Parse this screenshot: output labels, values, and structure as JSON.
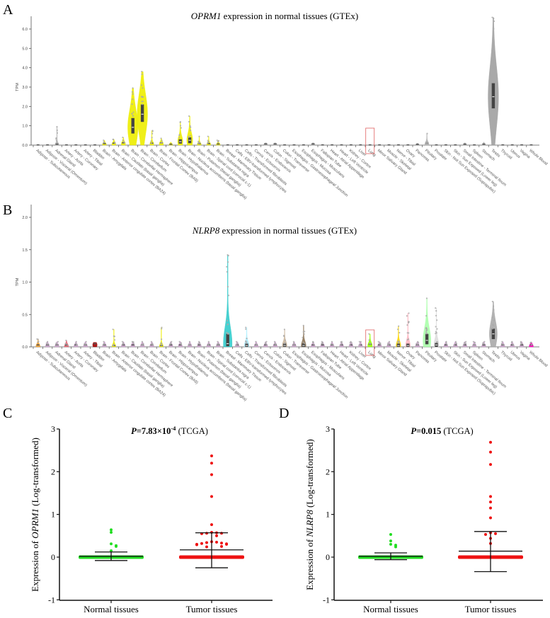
{
  "panel_labels": [
    "A",
    "B",
    "C",
    "D"
  ],
  "tissues": [
    "Adipose - Subcutaneous",
    "Adipose - Visceral (Omentum)",
    "Adrenal Gland",
    "Artery - Aorta",
    "Artery - Coronary",
    "Artery - Tibial",
    "Bladder",
    "Brain - Amygdala",
    "Brain - Anterior cingulate cortex (BA24)",
    "Brain - Caudate (basal ganglia)",
    "Brain - Cerebellar Hemisphere",
    "Brain - Cerebellum",
    "Brain - Cortex",
    "Brain - Frontal Cortex (BA9)",
    "Brain - Hippocampus",
    "Brain - Hypothalamus",
    "Brain - Nucleus accumbens (basal ganglia)",
    "Brain - Putamen (basal ganglia)",
    "Brain - Spinal cord (cervical c-1)",
    "Brain - Substantia nigra",
    "Breast - Mammary Tissue",
    "Cells - EBV-transformed lymphocytes",
    "Cells - Transformed fibroblasts",
    "Cervix - Ectocervix",
    "Cervix - Endocervix",
    "Colon - Sigmoid",
    "Colon - Transverse",
    "Esophagus - Gastroesophageal Junction",
    "Esophagus - Mucosa",
    "Esophagus - Muscularis",
    "Fallopian Tube",
    "Heart - Atrial Appendage",
    "Heart - Left Ventricle",
    "Kidney - Cortex",
    "Liver",
    "Lung",
    "Minor Salivary Gland",
    "Muscle - Skeletal",
    "Nerve - Tibial",
    "Ovary",
    "Pancreas",
    "Pituitary",
    "Prostate",
    "Skin - Not Sun Exposed (Suprapubic)",
    "Skin - Sun Exposed (Lower leg)",
    "Small Intestine - Terminal Ileum",
    "Spleen",
    "Stomach",
    "Testis",
    "Thyroid",
    "Uterus",
    "Vagina",
    "Whole Blood"
  ],
  "highlight_tissue": "Lung",
  "highlight_color": "#e06060",
  "chart_data": [
    {
      "type": "violin",
      "panel": "A",
      "title_gene": "OPRM1",
      "title_rest": " expression in normal tissues (GTEx)",
      "ylabel": "TPM",
      "ylim": [
        0,
        6.6
      ],
      "yticks": [
        "0.0",
        "1.0",
        "2.0",
        "3.0",
        "4.0",
        "5.0",
        "6.0"
      ],
      "default": {
        "median": 0.0,
        "q1": 0.0,
        "q3": 0.01,
        "max": 0.04,
        "color": "#b0b0b0"
      },
      "series": [
        {
          "tissue": "Adrenal Gland",
          "median": 0.02,
          "q1": 0.0,
          "q3": 0.05,
          "max": 0.95,
          "color": "#b0b0b0"
        },
        {
          "tissue": "Brain - Amygdala",
          "median": 0.04,
          "q1": 0.01,
          "q3": 0.08,
          "max": 0.25,
          "color": "#eeee00"
        },
        {
          "tissue": "Brain - Anterior cingulate cortex (BA24)",
          "median": 0.05,
          "q1": 0.02,
          "q3": 0.1,
          "max": 0.3,
          "color": "#eeee00"
        },
        {
          "tissue": "Brain - Caudate (basal ganglia)",
          "median": 0.07,
          "q1": 0.02,
          "q3": 0.12,
          "max": 0.4,
          "color": "#eeee00"
        },
        {
          "tissue": "Brain - Cerebellar Hemisphere",
          "median": 0.92,
          "q1": 0.6,
          "q3": 1.4,
          "max": 2.95,
          "color": "#eeee00"
        },
        {
          "tissue": "Brain - Cerebellum",
          "median": 1.6,
          "q1": 1.2,
          "q3": 2.1,
          "max": 3.8,
          "color": "#eeee00"
        },
        {
          "tissue": "Brain - Cortex",
          "median": 0.05,
          "q1": 0.02,
          "q3": 0.1,
          "max": 0.75,
          "color": "#eeee00"
        },
        {
          "tissue": "Brain - Frontal Cortex (BA9)",
          "median": 0.06,
          "q1": 0.02,
          "q3": 0.12,
          "max": 0.35,
          "color": "#eeee00"
        },
        {
          "tissue": "Brain - Hippocampus",
          "median": 0.02,
          "q1": 0.0,
          "q3": 0.05,
          "max": 0.15,
          "color": "#eeee00"
        },
        {
          "tissue": "Brain - Hypothalamus",
          "median": 0.18,
          "q1": 0.08,
          "q3": 0.3,
          "max": 1.2,
          "color": "#eeee00"
        },
        {
          "tissue": "Brain - Nucleus accumbens (basal ganglia)",
          "median": 0.25,
          "q1": 0.1,
          "q3": 0.4,
          "max": 1.5,
          "color": "#eeee00"
        },
        {
          "tissue": "Brain - Putamen (basal ganglia)",
          "median": 0.04,
          "q1": 0.01,
          "q3": 0.08,
          "max": 0.45,
          "color": "#eeee00"
        },
        {
          "tissue": "Brain - Spinal cord (cervical c-1)",
          "median": 0.04,
          "q1": 0.01,
          "q3": 0.08,
          "max": 0.45,
          "color": "#eeee00"
        },
        {
          "tissue": "Brain - Substantia nigra",
          "median": 0.03,
          "q1": 0.0,
          "q3": 0.06,
          "max": 0.25,
          "color": "#eeee00"
        },
        {
          "tissue": "Cervix - Endocervix",
          "median": 0.03,
          "q1": 0.0,
          "q3": 0.06,
          "max": 0.12,
          "color": "#b0b0b0"
        },
        {
          "tissue": "Colon - Sigmoid",
          "median": 0.03,
          "q1": 0.0,
          "q3": 0.06,
          "max": 0.12,
          "color": "#b0b0b0"
        },
        {
          "tissue": "Esophagus - Muscularis",
          "median": 0.03,
          "q1": 0.0,
          "q3": 0.06,
          "max": 0.12,
          "color": "#b0b0b0"
        },
        {
          "tissue": "Pancreas",
          "median": 0.02,
          "q1": 0.0,
          "q3": 0.04,
          "max": 0.1,
          "color": "#b0b0b0"
        },
        {
          "tissue": "Pituitary",
          "median": 0.05,
          "q1": 0.01,
          "q3": 0.1,
          "max": 0.6,
          "color": "#b0b0b0"
        },
        {
          "tissue": "Small Intestine - Terminal Ileum",
          "median": 0.02,
          "q1": 0.0,
          "q3": 0.05,
          "max": 0.12,
          "color": "#b0b0b0"
        },
        {
          "tissue": "Stomach",
          "median": 0.02,
          "q1": 0.0,
          "q3": 0.05,
          "max": 0.15,
          "color": "#b0b0b0"
        },
        {
          "tissue": "Testis",
          "median": 2.5,
          "q1": 1.9,
          "q3": 3.2,
          "max": 6.6,
          "color": "#a0a0a0"
        }
      ]
    },
    {
      "type": "violin",
      "panel": "B",
      "title_gene": "NLRP8",
      "title_rest": " expression in normal tissues (GTEx)",
      "ylabel": "TPM",
      "ylim": [
        0,
        2.0
      ],
      "yticks": [
        "0.0",
        "0.5",
        "1.0",
        "1.5",
        "2.0"
      ],
      "default": {
        "median": 0.01,
        "q1": 0.0,
        "q3": 0.03,
        "max": 0.08,
        "color": "#c8a0c8"
      },
      "series": [
        {
          "tissue": "Adipose - Subcutaneous",
          "median": 0.01,
          "q1": 0.0,
          "q3": 0.03,
          "max": 0.12,
          "color": "#f0a030"
        },
        {
          "tissue": "Artery - Aorta",
          "median": 0.01,
          "q1": 0.0,
          "q3": 0.03,
          "max": 0.1,
          "color": "#e06070"
        },
        {
          "tissue": "Bladder",
          "median": 0.03,
          "q1": 0.01,
          "q3": 0.05,
          "max": 0.07,
          "color": "#a00000"
        },
        {
          "tissue": "Brain - Anterior cingulate cortex (BA24)",
          "median": 0.01,
          "q1": 0.0,
          "q3": 0.02,
          "max": 0.27,
          "color": "#eeee00"
        },
        {
          "tissue": "Brain - Frontal Cortex (BA9)",
          "median": 0.01,
          "q1": 0.0,
          "q3": 0.02,
          "max": 0.3,
          "color": "#eeee00"
        },
        {
          "tissue": "Breast - Mammary Tissue",
          "median": 0.05,
          "q1": 0.01,
          "q3": 0.2,
          "max": 1.42,
          "color": "#33cccc"
        },
        {
          "tissue": "Cells - Transformed fibroblasts",
          "median": 0.02,
          "q1": 0.0,
          "q3": 0.05,
          "max": 0.3,
          "color": "#aaeeff"
        },
        {
          "tissue": "Colon - Transverse",
          "median": 0.02,
          "q1": 0.0,
          "q3": 0.05,
          "max": 0.27,
          "color": "#cdb79e"
        },
        {
          "tissue": "Esophagus - Mucosa",
          "median": 0.02,
          "q1": 0.0,
          "q3": 0.05,
          "max": 0.33,
          "color": "#8b7355"
        },
        {
          "tissue": "Lung",
          "median": 0.02,
          "q1": 0.0,
          "q3": 0.04,
          "max": 0.2,
          "color": "#99ff00"
        },
        {
          "tissue": "Nerve - Tibial",
          "median": 0.02,
          "q1": 0.0,
          "q3": 0.05,
          "max": 0.32,
          "color": "#ffd700"
        },
        {
          "tissue": "Ovary",
          "median": 0.02,
          "q1": 0.0,
          "q3": 0.05,
          "max": 0.52,
          "color": "#ffb6c1"
        },
        {
          "tissue": "Pituitary",
          "median": 0.1,
          "q1": 0.04,
          "q3": 0.2,
          "max": 0.75,
          "color": "#aaffaa"
        },
        {
          "tissue": "Prostate",
          "median": 0.03,
          "q1": 0.0,
          "q3": 0.06,
          "max": 0.6,
          "color": "#dddddd"
        },
        {
          "tissue": "Testis",
          "median": 0.2,
          "q1": 0.12,
          "q3": 0.28,
          "max": 0.7,
          "color": "#aaaaaa"
        },
        {
          "tissue": "Whole Blood",
          "median": 0.01,
          "q1": 0.0,
          "q3": 0.03,
          "max": 0.07,
          "color": "#ff00bb"
        }
      ]
    },
    {
      "type": "scatter-dot-plot",
      "panel": "C",
      "title_stat": "P",
      "title_eq": "=7.83×10",
      "title_exp": "-4",
      "title_src": " (TCGA)",
      "ylabel_pre": "Expression of ",
      "ylabel_gene": "OPRM1",
      "ylabel_post": " (Log-transformed)",
      "ylim": [
        -1,
        3
      ],
      "yticks": [
        "-1",
        "0",
        "1",
        "2",
        "3"
      ],
      "categories": [
        "Normal tissues",
        "Tumor tissues"
      ],
      "colors": [
        "#22dd22",
        "#ee1111"
      ],
      "series": [
        {
          "category": "Normal tissues",
          "mean": 0.02,
          "sd_low": -0.08,
          "sd_high": 0.12,
          "points": [
            0.64,
            0.58,
            0.31,
            0.27,
            0.25,
            0.15
          ]
        },
        {
          "category": "Tumor tissues",
          "mean": 0.17,
          "sd_low": -0.25,
          "sd_high": 0.57,
          "points": [
            2.37,
            2.2,
            1.93,
            1.42,
            0.76,
            0.58,
            0.57,
            0.56,
            0.56,
            0.55,
            0.5,
            0.36,
            0.35,
            0.34,
            0.33,
            0.32,
            0.31,
            0.3,
            0.3,
            0.29,
            0.25,
            0.24
          ]
        }
      ]
    },
    {
      "type": "scatter-dot-plot",
      "panel": "D",
      "title_stat": "P",
      "title_eq": "=0.015",
      "title_exp": "",
      "title_src": " (TCGA)",
      "ylabel_pre": "Expression of ",
      "ylabel_gene": "NLRP8",
      "ylabel_post": " (Log-transformed)",
      "ylim": [
        -1,
        3
      ],
      "yticks": [
        "-1",
        "0",
        "1",
        "2",
        "3"
      ],
      "categories": [
        "Normal tissues",
        "Tumor tissues"
      ],
      "colors": [
        "#22dd22",
        "#ee1111"
      ],
      "series": [
        {
          "category": "Normal tissues",
          "mean": 0.02,
          "sd_low": -0.06,
          "sd_high": 0.1,
          "points": [
            0.53,
            0.38,
            0.3,
            0.28,
            0.24
          ]
        },
        {
          "category": "Tumor tissues",
          "mean": 0.14,
          "sd_low": -0.34,
          "sd_high": 0.6,
          "points": [
            2.69,
            2.46,
            2.17,
            1.42,
            1.29,
            1.15,
            0.92,
            0.57,
            0.55,
            0.53,
            0.44,
            0.32
          ]
        }
      ]
    }
  ]
}
